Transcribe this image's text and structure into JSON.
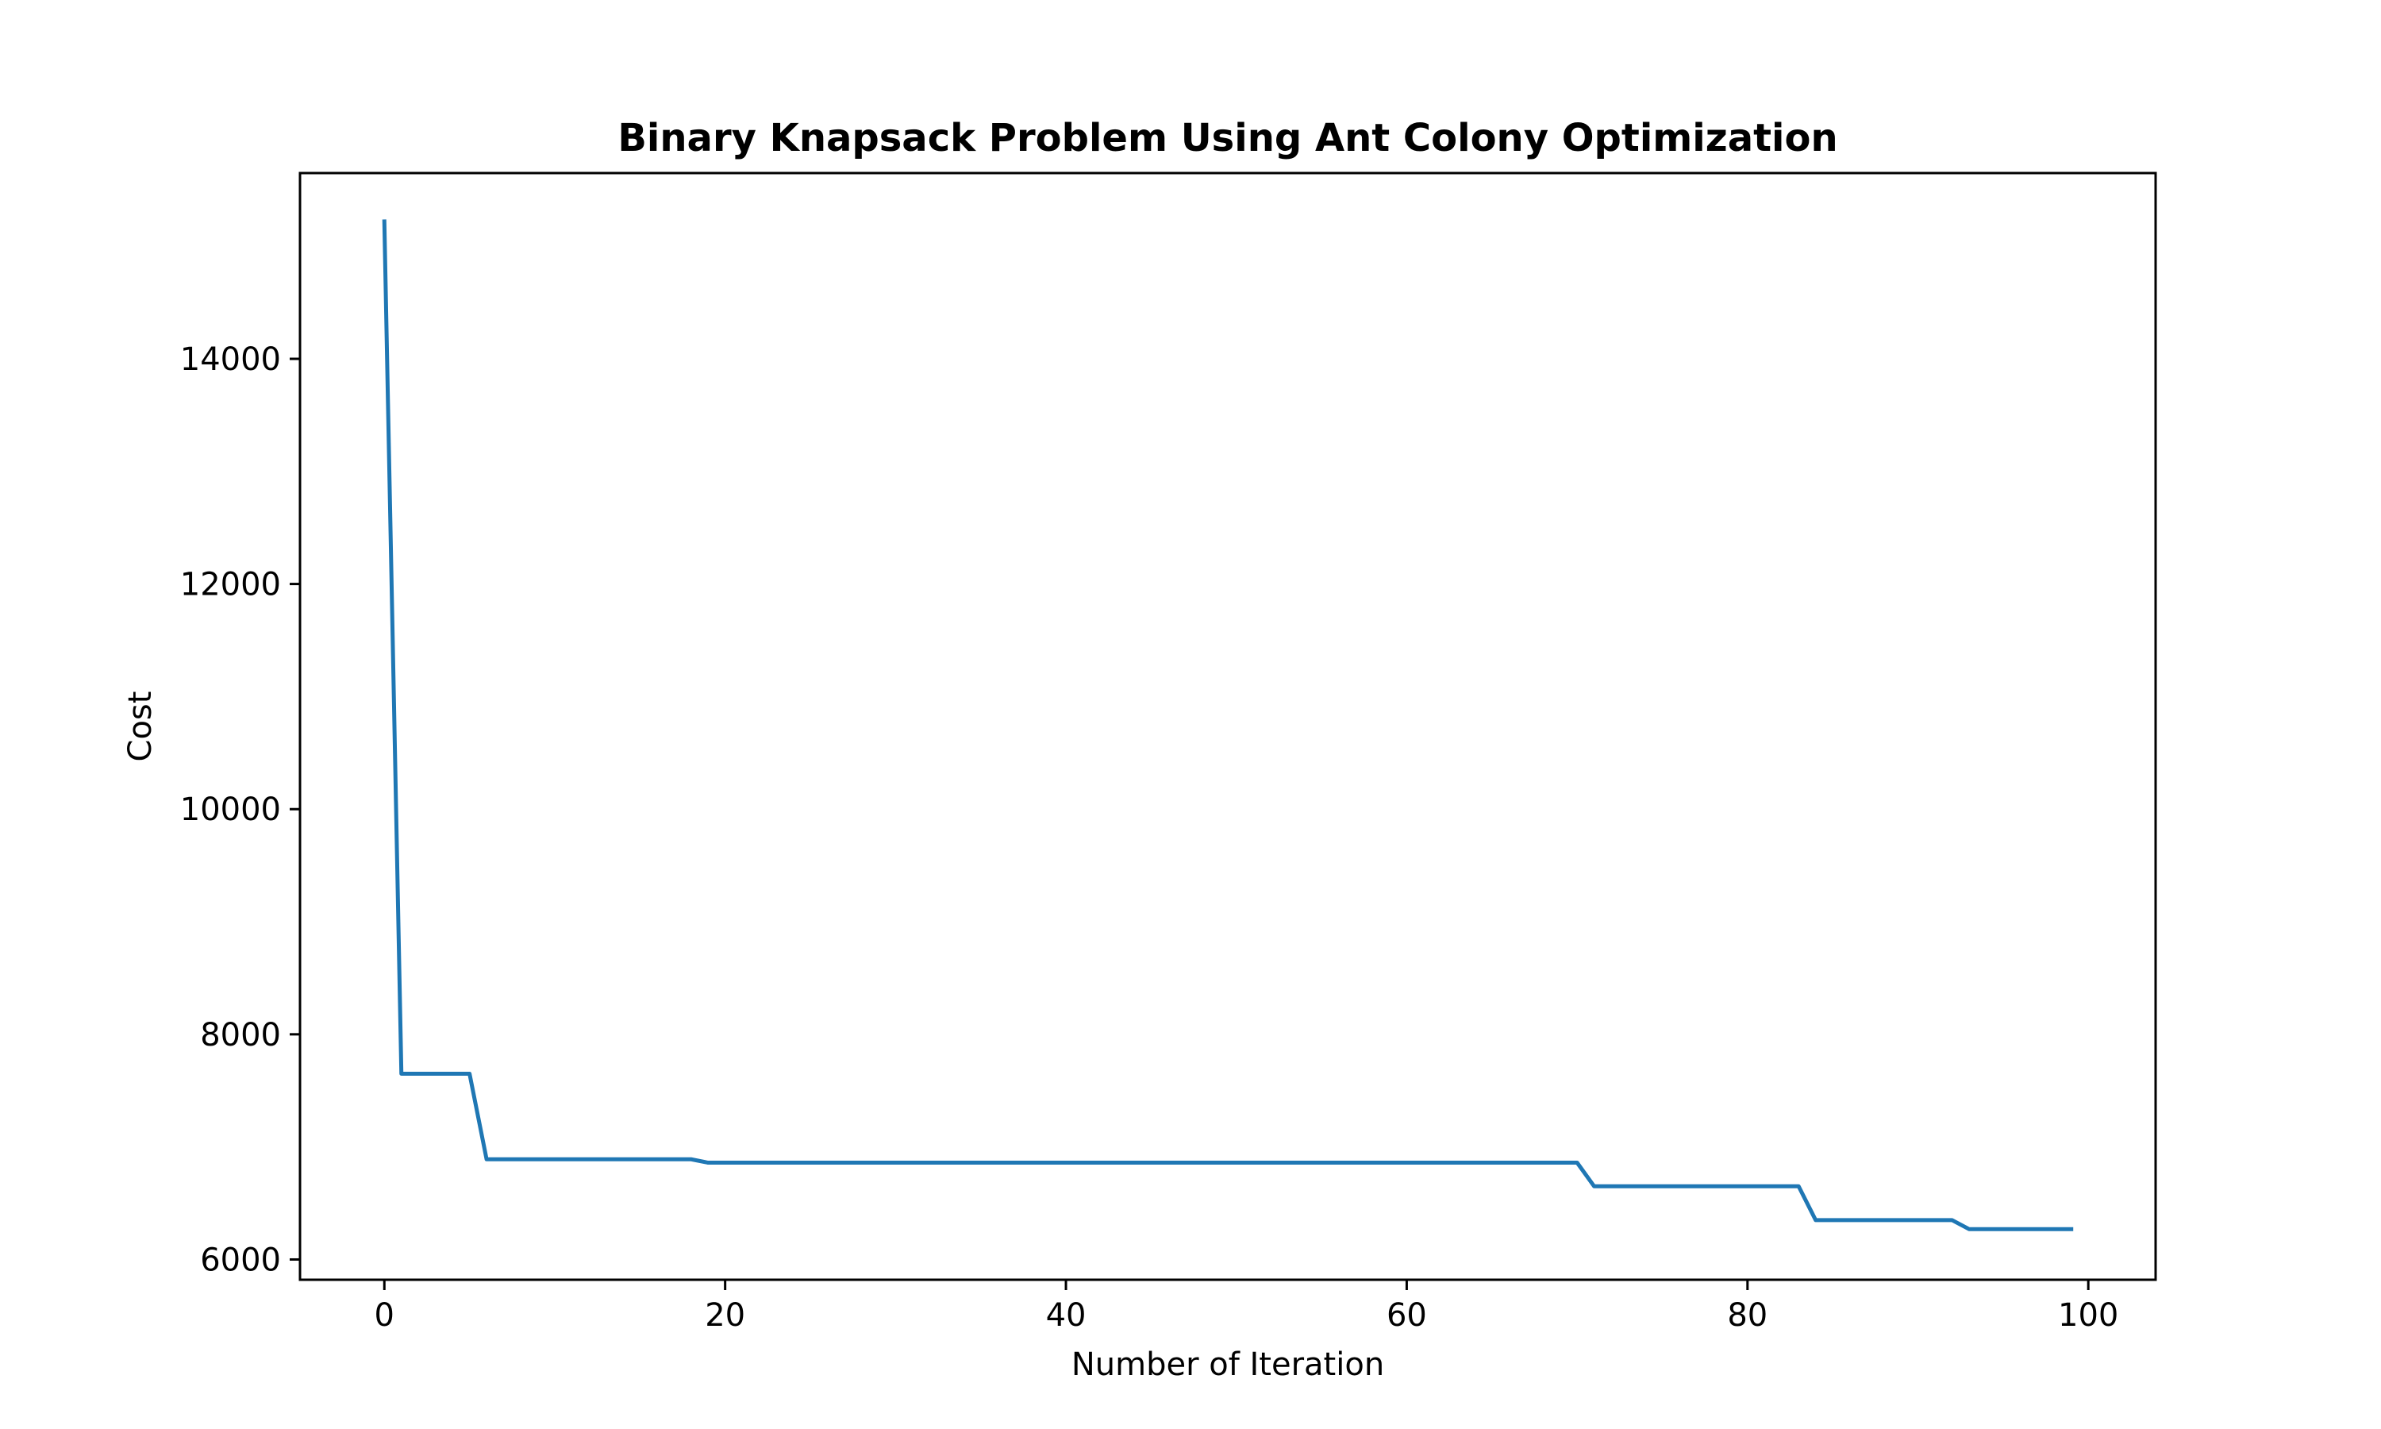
{
  "chart_data": {
    "type": "line",
    "title": "Binary Knapsack Problem Using Ant Colony Optimization",
    "xlabel": "Number of Iteration",
    "ylabel": "Cost",
    "xlim": [
      -4.95,
      103.95
    ],
    "ylim": [
      5820,
      15650
    ],
    "x_ticks": [
      0,
      20,
      40,
      60,
      80,
      100
    ],
    "x_tick_labels": [
      "0",
      "20",
      "40",
      "60",
      "80",
      "100"
    ],
    "y_ticks": [
      6000,
      8000,
      10000,
      12000,
      14000
    ],
    "y_tick_labels": [
      "6000",
      "8000",
      "10000",
      "12000",
      "14000"
    ],
    "grid": false,
    "legend": "none",
    "line_color": "#1f77b4",
    "series": [
      {
        "x": [
          0,
          1,
          5,
          6,
          18,
          19,
          70,
          71,
          83,
          84,
          92,
          93,
          99
        ],
        "values": [
          15220,
          7650,
          7650,
          6890,
          6890,
          6860,
          6860,
          6650,
          6650,
          6350,
          6350,
          6270,
          6270
        ]
      }
    ]
  }
}
